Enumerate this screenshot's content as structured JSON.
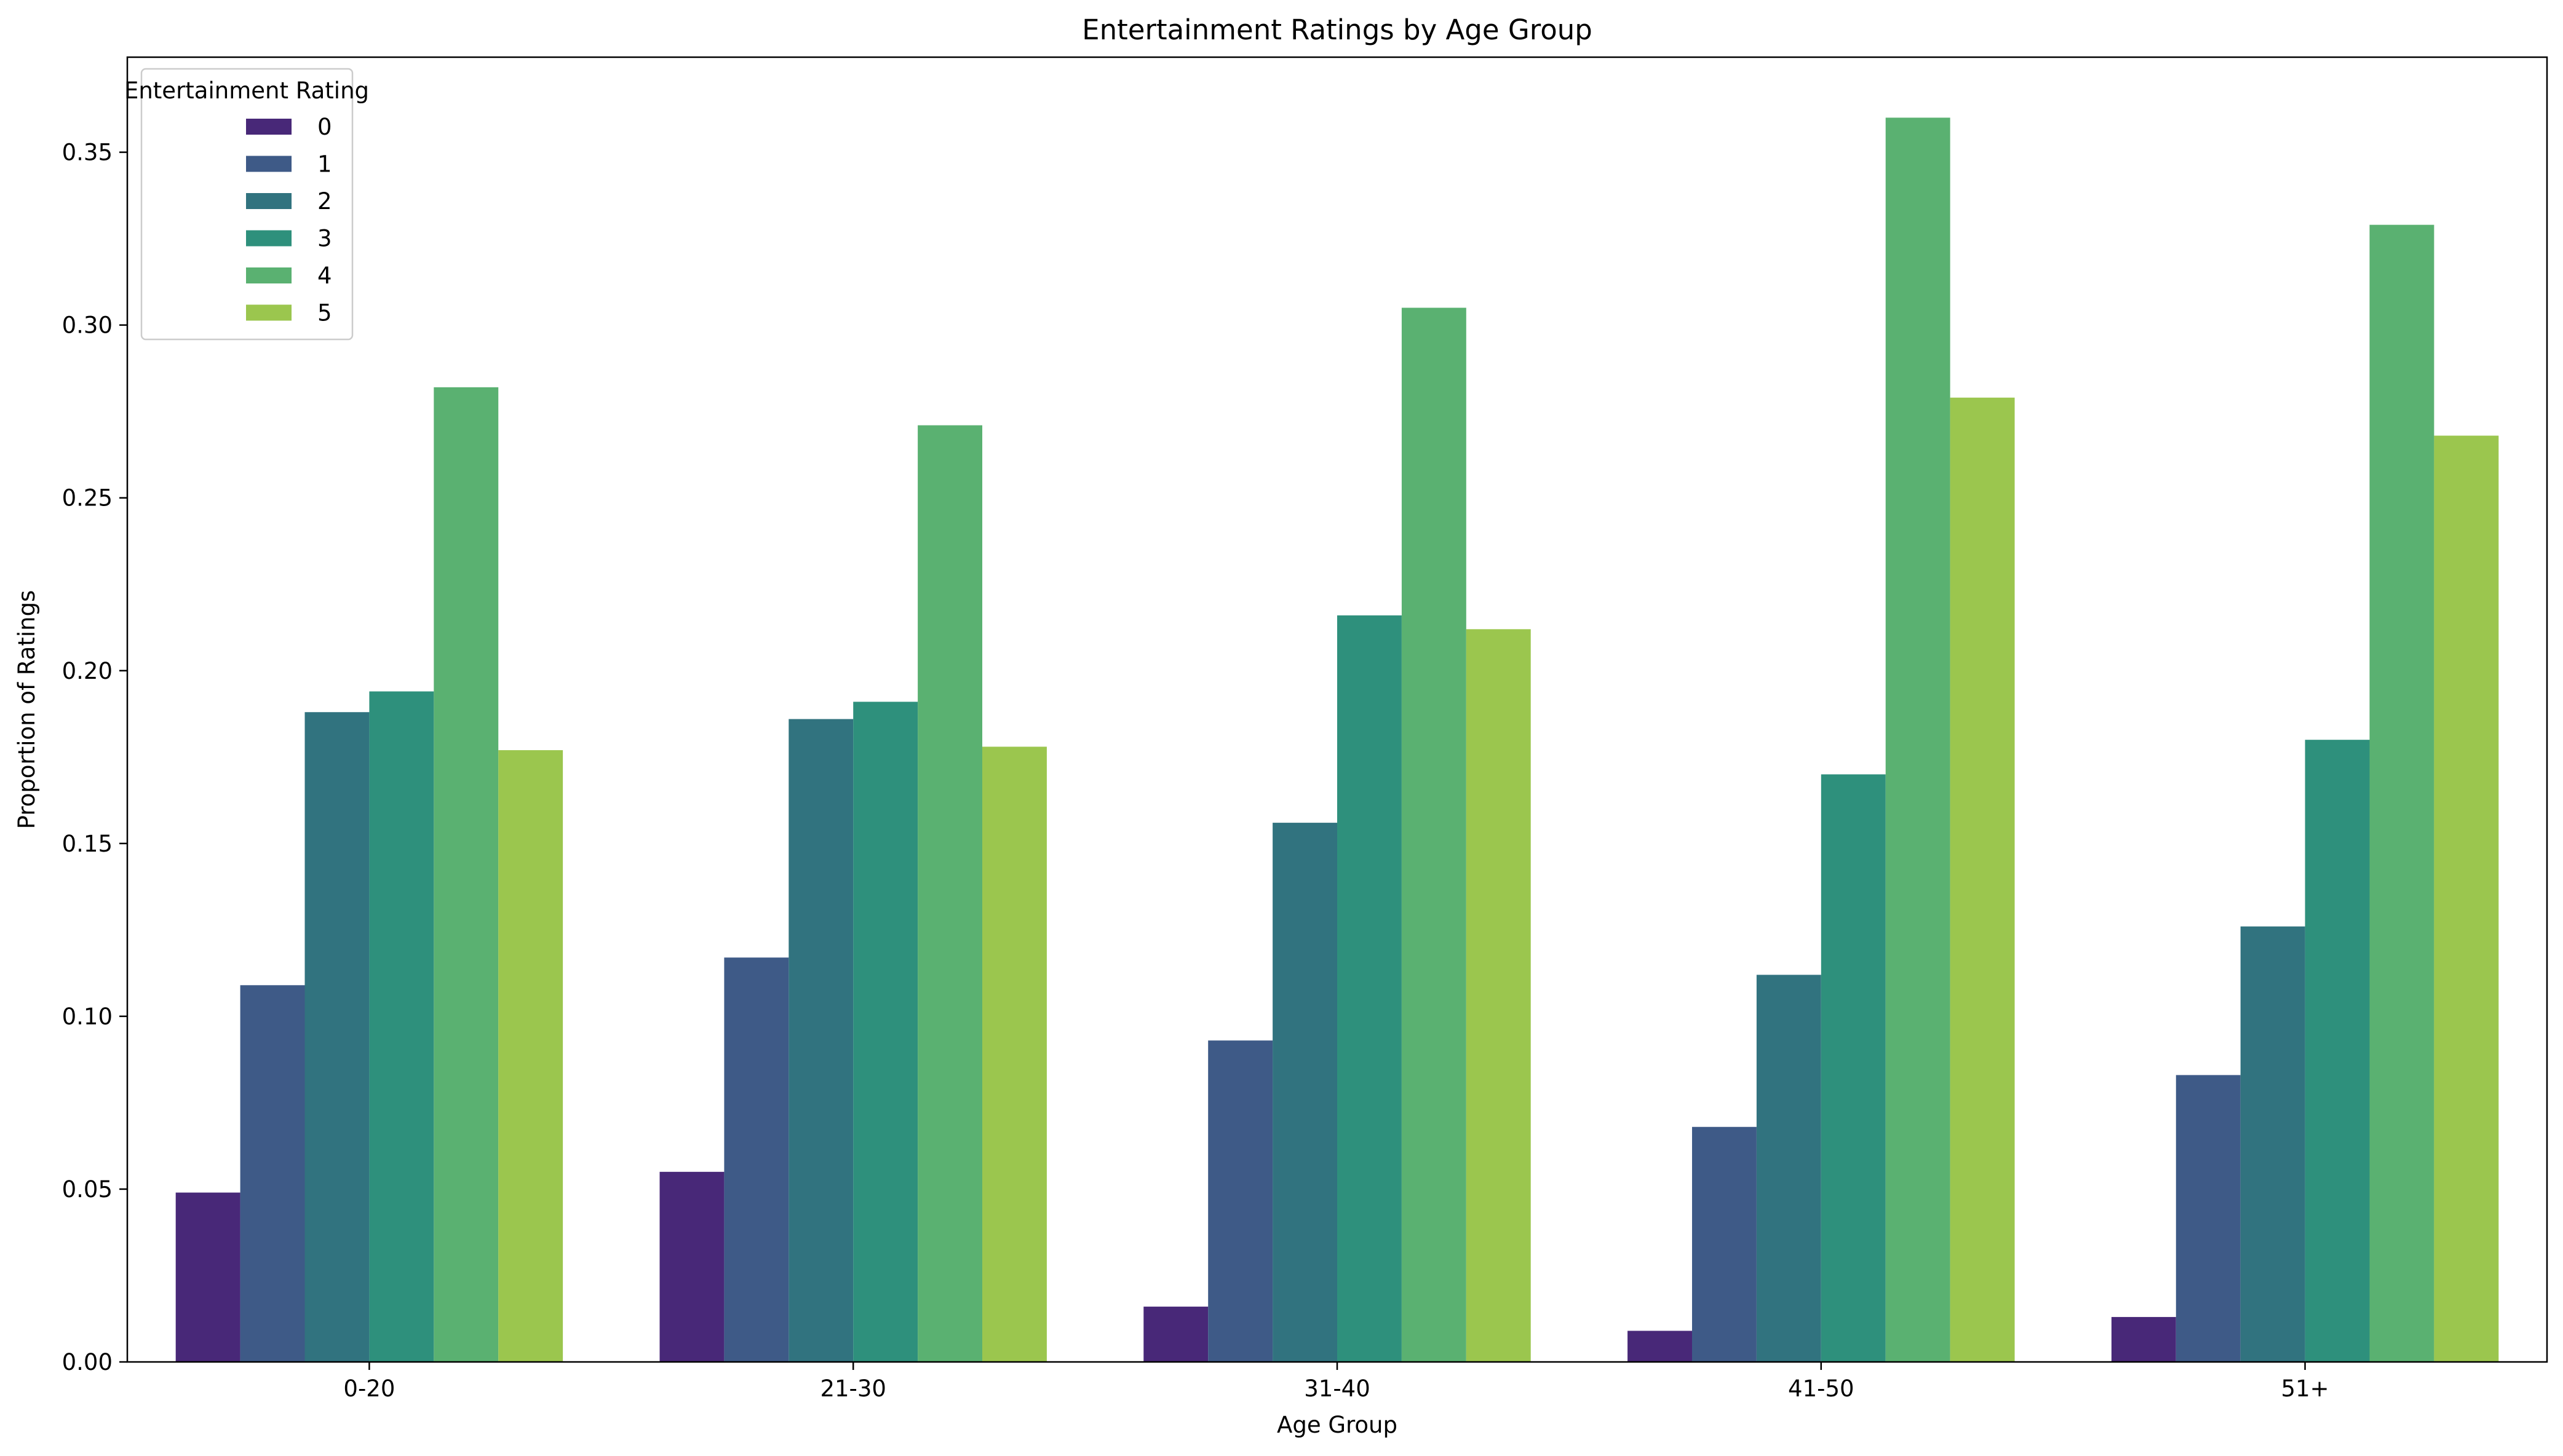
{
  "chart_data": {
    "type": "bar",
    "title": "Entertainment Ratings by Age Group",
    "xlabel": "Age Group",
    "ylabel": "Proportion of Ratings",
    "ylim": [
      0,
      0.3775
    ],
    "yticks": [
      "0.00",
      "0.05",
      "0.10",
      "0.15",
      "0.20",
      "0.25",
      "0.30",
      "0.35"
    ],
    "categories": [
      "0-20",
      "21-30",
      "31-40",
      "41-50",
      "51+"
    ],
    "legend": {
      "title": "Entertainment Rating",
      "placement": "top-left"
    },
    "grid": false,
    "series": [
      {
        "name": "0",
        "color": "#482878",
        "values": [
          0.049,
          0.055,
          0.016,
          0.009,
          0.013
        ]
      },
      {
        "name": "1",
        "color": "#3e5a87",
        "values": [
          0.109,
          0.117,
          0.093,
          0.068,
          0.083
        ]
      },
      {
        "name": "2",
        "color": "#31737f",
        "values": [
          0.188,
          0.186,
          0.156,
          0.112,
          0.126
        ]
      },
      {
        "name": "3",
        "color": "#2e907c",
        "values": [
          0.194,
          0.191,
          0.216,
          0.17,
          0.18
        ]
      },
      {
        "name": "4",
        "color": "#5ab171",
        "values": [
          0.282,
          0.271,
          0.305,
          0.36,
          0.329
        ]
      },
      {
        "name": "5",
        "color": "#9bc64e",
        "values": [
          0.177,
          0.178,
          0.212,
          0.279,
          0.268
        ]
      }
    ]
  }
}
